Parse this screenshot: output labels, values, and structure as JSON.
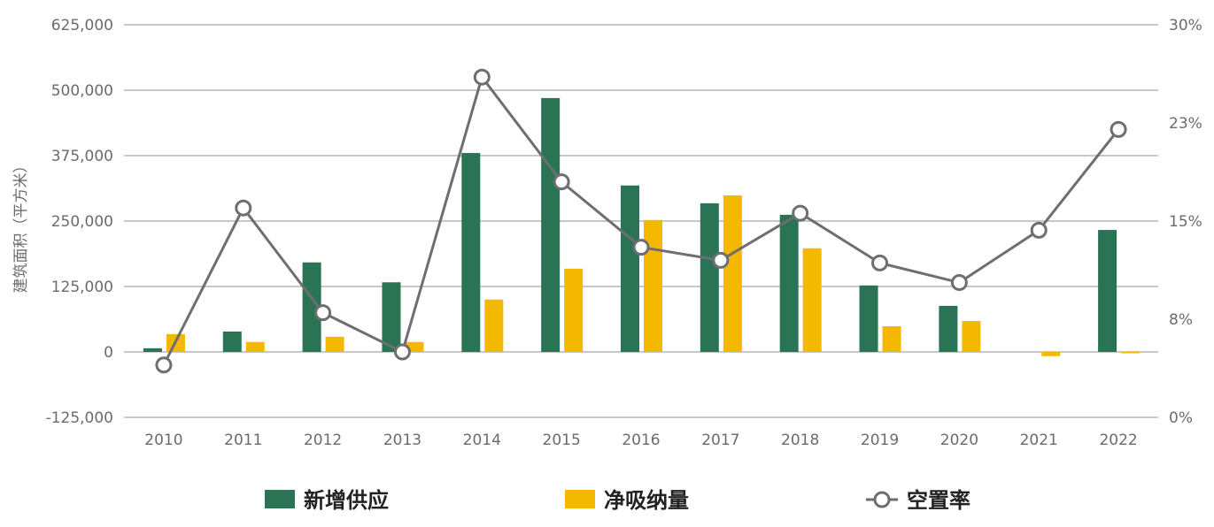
{
  "chart_data": {
    "type": "bar",
    "title": "",
    "xlabel": "",
    "ylabel": "建筑面积（平方米）",
    "y2label": "",
    "categories": [
      "2010",
      "2011",
      "2012",
      "2013",
      "2014",
      "2015",
      "2016",
      "2017",
      "2018",
      "2019",
      "2020",
      "2021",
      "2022"
    ],
    "ylim": [
      -125000,
      625000
    ],
    "yticks": [
      -125000,
      0,
      125000,
      250000,
      375000,
      500000,
      625000
    ],
    "ytick_labels": [
      "-125,000",
      "0",
      "125,000",
      "250,000",
      "375,000",
      "500,000",
      "625,000"
    ],
    "y2lim": [
      0,
      30
    ],
    "y2ticks": [
      0,
      7.5,
      15,
      22.5,
      30
    ],
    "y2tick_labels": [
      "0%",
      "8%",
      "15%",
      "23%",
      "30%"
    ],
    "grid": true,
    "legend_position": "bottom",
    "series": [
      {
        "name": "新增供应",
        "type": "bar",
        "axis": "left",
        "color": "#2a7355",
        "values": [
          7000,
          39000,
          171000,
          133000,
          380000,
          485000,
          318000,
          284000,
          262000,
          127000,
          88000,
          0,
          233000
        ]
      },
      {
        "name": "净吸纳量",
        "type": "bar",
        "axis": "left",
        "color": "#f5b800",
        "values": [
          34000,
          19000,
          29000,
          19000,
          100000,
          159000,
          252000,
          299000,
          198000,
          49000,
          59000,
          -8000,
          -2000
        ]
      },
      {
        "name": "空置率",
        "type": "line",
        "axis": "right",
        "unit": "%",
        "color": "#6d6e71",
        "values": [
          4.0,
          16.0,
          8.0,
          5.0,
          26.0,
          18.0,
          13.0,
          12.0,
          15.6,
          11.8,
          10.3,
          14.3,
          22.0
        ]
      }
    ]
  }
}
